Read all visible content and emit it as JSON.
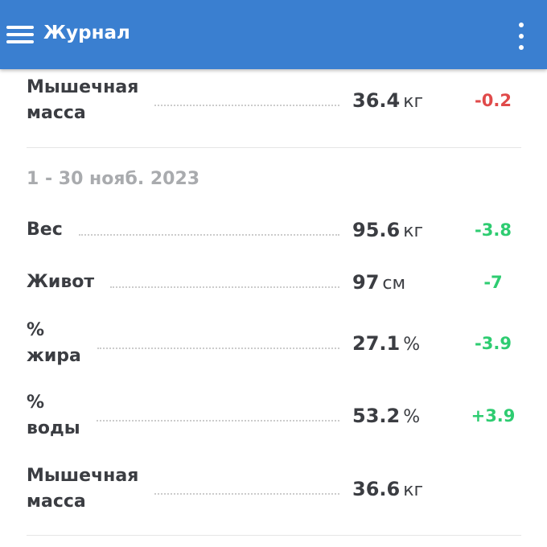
{
  "header": {
    "title": "Журнал",
    "menu_icon": "hamburger-icon",
    "more_icon": "more-vertical-icon",
    "color": "#3a7fd0"
  },
  "colors": {
    "negative": "#e04a4a",
    "positive": "#2ecc71"
  },
  "top_entry": {
    "label": "Мышечная\nмасса",
    "value": "36.4",
    "unit": "кг",
    "delta": "-0.2"
  },
  "period": {
    "date": "1 - 30 нояб. 2023",
    "entries": [
      {
        "label": "Вес",
        "value": "95.6",
        "unit": "кг",
        "delta": "-3.8"
      },
      {
        "label": "Живот",
        "value": "97",
        "unit": "см",
        "delta": "-7"
      },
      {
        "label": "%\nжира",
        "value": "27.1",
        "unit": "%",
        "delta": "-3.9"
      },
      {
        "label": "%\nводы",
        "value": "53.2",
        "unit": "%",
        "delta": "+3.9"
      },
      {
        "label": "Мышечная\nмасса",
        "value": "36.6",
        "unit": "кг",
        "delta": ""
      }
    ]
  }
}
